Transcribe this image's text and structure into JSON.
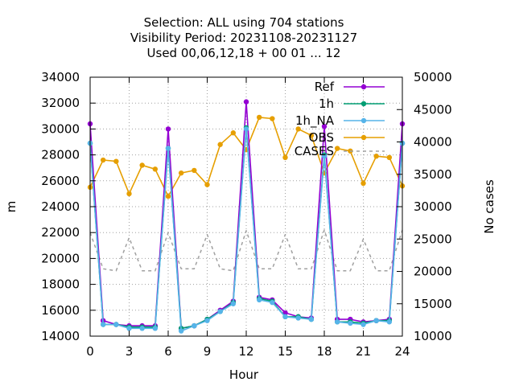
{
  "chart_data": {
    "type": "line",
    "title_lines": [
      "Selection: ALL using   704 stations",
      "Visibility   Period: 20231108-20231127",
      "Used  00,06,12,18 + 00 01 ... 12"
    ],
    "xlabel": "Hour",
    "ylabel": "m",
    "y2label": "No cases",
    "xlim": [
      0,
      24
    ],
    "ylim": [
      14000,
      34000
    ],
    "y2lim": [
      10000,
      50000
    ],
    "xticks": [
      0,
      3,
      6,
      9,
      12,
      15,
      18,
      21,
      24
    ],
    "yticks": [
      14000,
      16000,
      18000,
      20000,
      22000,
      24000,
      26000,
      28000,
      30000,
      32000,
      34000
    ],
    "y2ticks": [
      10000,
      15000,
      20000,
      25000,
      30000,
      35000,
      40000,
      45000,
      50000
    ],
    "grid": true,
    "legend_position": "top-right",
    "x": [
      0,
      1,
      2,
      3,
      4,
      5,
      6,
      7,
      8,
      9,
      10,
      11,
      12,
      13,
      14,
      15,
      16,
      17,
      18,
      19,
      20,
      21,
      22,
      23,
      24
    ],
    "series": [
      {
        "name": "Ref",
        "axis": "y",
        "color": "#9400d3",
        "style": "line-points",
        "values": [
          30400,
          15200,
          14900,
          14800,
          14800,
          14800,
          30000,
          14600,
          14800,
          15300,
          16000,
          16700,
          32100,
          17000,
          16800,
          15800,
          15500,
          15400,
          30200,
          15300,
          15300,
          15100,
          15200,
          15300,
          30400
        ]
      },
      {
        "name": "1h",
        "axis": "y",
        "color": "#009e73",
        "style": "line-points",
        "values": [
          28900,
          14900,
          14900,
          14700,
          14700,
          14700,
          28500,
          14600,
          14800,
          15300,
          15900,
          16600,
          30100,
          16900,
          16700,
          15500,
          15500,
          15300,
          28000,
          15100,
          15100,
          15000,
          15200,
          15200,
          28900
        ]
      },
      {
        "name": "1h_NA",
        "axis": "y",
        "color": "#56b4e9",
        "style": "line-points",
        "values": [
          28900,
          14900,
          14900,
          14600,
          14600,
          14600,
          28500,
          14400,
          14800,
          15200,
          15900,
          16500,
          30000,
          16800,
          16600,
          15500,
          15400,
          15300,
          27900,
          15100,
          15000,
          14900,
          15200,
          15100,
          28900
        ]
      },
      {
        "name": "OBS",
        "axis": "y",
        "color": "#e69f00",
        "style": "line-points",
        "values": [
          25500,
          27600,
          27500,
          25000,
          27200,
          26900,
          24800,
          26600,
          26800,
          25700,
          28800,
          29700,
          28400,
          30900,
          30800,
          27800,
          30000,
          29500,
          26600,
          28500,
          28300,
          25800,
          27900,
          27800,
          25600
        ]
      },
      {
        "name": "CASES",
        "axis": "y2",
        "color": "#a0a0a0",
        "style": "dashed",
        "values": [
          26000,
          20400,
          20100,
          25200,
          20100,
          20100,
          26000,
          20400,
          20400,
          25700,
          20400,
          20100,
          26300,
          20400,
          20400,
          25700,
          20400,
          20400,
          26400,
          20100,
          20100,
          25000,
          20100,
          20100,
          26400
        ]
      }
    ]
  }
}
